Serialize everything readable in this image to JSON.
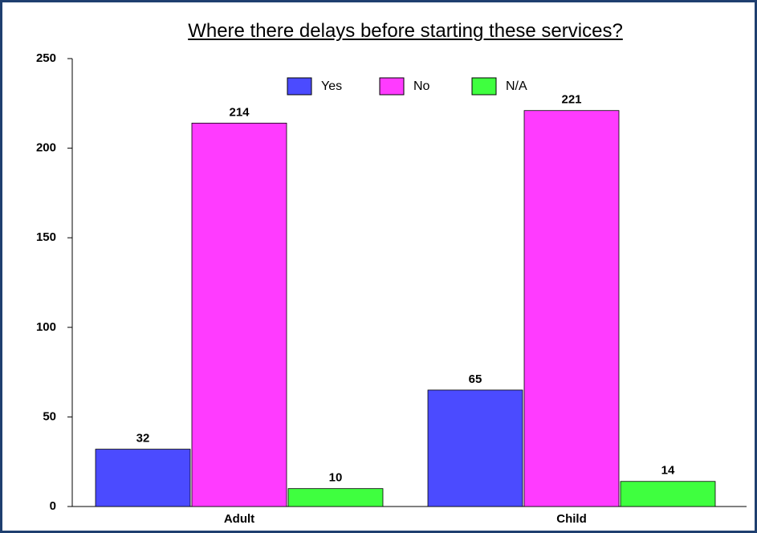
{
  "chart_data": {
    "type": "bar",
    "title": "Where there delays before starting these services?",
    "categories": [
      "Adult",
      "Child"
    ],
    "series": [
      {
        "name": "Yes",
        "color": "#4b4bff",
        "values": [
          32,
          65
        ]
      },
      {
        "name": "No",
        "color": "#ff3bff",
        "values": [
          214,
          221
        ]
      },
      {
        "name": "N/A",
        "color": "#3fff3f",
        "values": [
          10,
          14
        ]
      }
    ],
    "ylim": [
      0,
      250
    ],
    "yticks": [
      0,
      50,
      100,
      150,
      200,
      250
    ],
    "grid": false,
    "legend": "top"
  }
}
